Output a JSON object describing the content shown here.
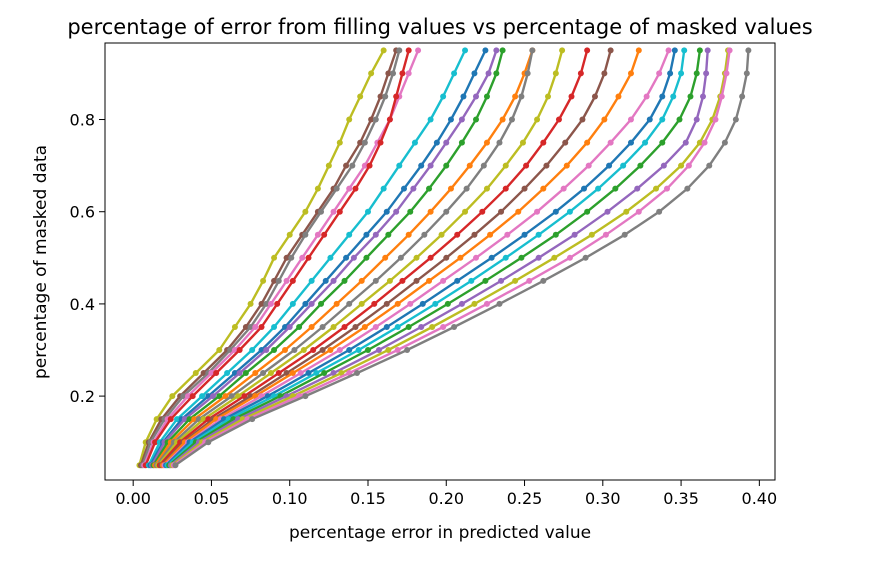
{
  "chart_data": {
    "type": "line",
    "title": "percentage of error from filling values vs percentage of masked values",
    "xlabel": "percentage error in predicted value",
    "ylabel": "percentage of masked data",
    "xlim": [
      -0.018,
      0.41
    ],
    "ylim": [
      0.018,
      0.966
    ],
    "xticks": [
      "0.00",
      "0.05",
      "0.10",
      "0.15",
      "0.20",
      "0.25",
      "0.30",
      "0.35",
      "0.40"
    ],
    "yticks": [
      "0.2",
      "0.4",
      "0.6",
      "0.8"
    ],
    "grid": false,
    "legend": "none",
    "y": [
      0.05,
      0.1,
      0.15,
      0.2,
      0.25,
      0.3,
      0.35,
      0.4,
      0.45,
      0.5,
      0.55,
      0.6,
      0.65,
      0.7,
      0.75,
      0.8,
      0.85,
      0.9,
      0.95
    ],
    "series": [
      {
        "color": "#bcbd22",
        "x": [
          0.004,
          0.008,
          0.015,
          0.025,
          0.04,
          0.055,
          0.065,
          0.075,
          0.083,
          0.09,
          0.1,
          0.11,
          0.118,
          0.125,
          0.132,
          0.138,
          0.145,
          0.152,
          0.16
        ]
      },
      {
        "color": "#8c564b",
        "x": [
          0.005,
          0.01,
          0.018,
          0.03,
          0.045,
          0.06,
          0.072,
          0.082,
          0.09,
          0.098,
          0.108,
          0.118,
          0.128,
          0.136,
          0.145,
          0.152,
          0.158,
          0.163,
          0.168
        ]
      },
      {
        "color": "#7f7f7f",
        "x": [
          0.006,
          0.011,
          0.02,
          0.032,
          0.048,
          0.062,
          0.075,
          0.085,
          0.093,
          0.101,
          0.11,
          0.12,
          0.13,
          0.14,
          0.148,
          0.155,
          0.161,
          0.166,
          0.17
        ]
      },
      {
        "color": "#e377c2",
        "x": [
          0.007,
          0.013,
          0.022,
          0.035,
          0.05,
          0.065,
          0.078,
          0.088,
          0.098,
          0.108,
          0.118,
          0.128,
          0.138,
          0.148,
          0.156,
          0.164,
          0.17,
          0.176,
          0.182
        ]
      },
      {
        "color": "#d62728",
        "x": [
          0.008,
          0.014,
          0.024,
          0.038,
          0.053,
          0.068,
          0.082,
          0.092,
          0.102,
          0.112,
          0.122,
          0.132,
          0.142,
          0.151,
          0.158,
          0.164,
          0.168,
          0.172,
          0.176
        ]
      },
      {
        "color": "#17becf",
        "x": [
          0.01,
          0.017,
          0.028,
          0.044,
          0.06,
          0.076,
          0.09,
          0.102,
          0.114,
          0.126,
          0.138,
          0.15,
          0.16,
          0.17,
          0.18,
          0.19,
          0.198,
          0.205,
          0.212
        ]
      },
      {
        "color": "#1f77b4",
        "x": [
          0.011,
          0.019,
          0.031,
          0.048,
          0.065,
          0.082,
          0.097,
          0.11,
          0.123,
          0.136,
          0.149,
          0.162,
          0.173,
          0.184,
          0.194,
          0.203,
          0.211,
          0.218,
          0.225
        ]
      },
      {
        "color": "#9467bd",
        "x": [
          0.012,
          0.02,
          0.033,
          0.051,
          0.068,
          0.085,
          0.1,
          0.114,
          0.128,
          0.141,
          0.155,
          0.168,
          0.179,
          0.19,
          0.2,
          0.21,
          0.219,
          0.227,
          0.232
        ]
      },
      {
        "color": "#2ca02c",
        "x": [
          0.013,
          0.022,
          0.036,
          0.055,
          0.072,
          0.09,
          0.106,
          0.12,
          0.135,
          0.149,
          0.163,
          0.177,
          0.189,
          0.2,
          0.21,
          0.219,
          0.226,
          0.232,
          0.236
        ]
      },
      {
        "color": "#ff7f0e",
        "x": [
          0.014,
          0.024,
          0.039,
          0.059,
          0.078,
          0.097,
          0.114,
          0.13,
          0.146,
          0.161,
          0.176,
          0.19,
          0.203,
          0.215,
          0.226,
          0.236,
          0.244,
          0.25,
          0.255
        ]
      },
      {
        "color": "#7f7f7f",
        "x": [
          0.015,
          0.026,
          0.042,
          0.063,
          0.083,
          0.103,
          0.121,
          0.138,
          0.155,
          0.171,
          0.186,
          0.2,
          0.213,
          0.224,
          0.234,
          0.242,
          0.248,
          0.252,
          0.255
        ]
      },
      {
        "color": "#bcbd22",
        "x": [
          0.016,
          0.028,
          0.045,
          0.067,
          0.088,
          0.109,
          0.128,
          0.146,
          0.164,
          0.181,
          0.197,
          0.212,
          0.226,
          0.238,
          0.249,
          0.258,
          0.265,
          0.27,
          0.274
        ]
      },
      {
        "color": "#d62728",
        "x": [
          0.017,
          0.03,
          0.048,
          0.071,
          0.093,
          0.115,
          0.135,
          0.154,
          0.172,
          0.19,
          0.207,
          0.223,
          0.238,
          0.251,
          0.262,
          0.272,
          0.28,
          0.286,
          0.29
        ]
      },
      {
        "color": "#8c564b",
        "x": [
          0.018,
          0.032,
          0.051,
          0.075,
          0.098,
          0.121,
          0.142,
          0.162,
          0.181,
          0.2,
          0.218,
          0.235,
          0.25,
          0.264,
          0.276,
          0.287,
          0.295,
          0.301,
          0.305
        ]
      },
      {
        "color": "#ff7f0e",
        "x": [
          0.019,
          0.033,
          0.053,
          0.078,
          0.102,
          0.126,
          0.148,
          0.169,
          0.189,
          0.209,
          0.228,
          0.246,
          0.262,
          0.277,
          0.29,
          0.301,
          0.31,
          0.318,
          0.323
        ]
      },
      {
        "color": "#e377c2",
        "x": [
          0.02,
          0.035,
          0.056,
          0.082,
          0.107,
          0.132,
          0.155,
          0.177,
          0.198,
          0.219,
          0.239,
          0.258,
          0.275,
          0.291,
          0.305,
          0.318,
          0.328,
          0.336,
          0.342
        ]
      },
      {
        "color": "#1f77b4",
        "x": [
          0.021,
          0.036,
          0.058,
          0.086,
          0.112,
          0.138,
          0.162,
          0.185,
          0.207,
          0.229,
          0.25,
          0.27,
          0.288,
          0.304,
          0.318,
          0.33,
          0.338,
          0.343,
          0.346
        ]
      },
      {
        "color": "#17becf",
        "x": [
          0.022,
          0.038,
          0.061,
          0.09,
          0.117,
          0.144,
          0.169,
          0.193,
          0.216,
          0.238,
          0.259,
          0.279,
          0.297,
          0.313,
          0.327,
          0.338,
          0.345,
          0.35,
          0.352
        ]
      },
      {
        "color": "#2ca02c",
        "x": [
          0.023,
          0.04,
          0.064,
          0.094,
          0.122,
          0.15,
          0.176,
          0.201,
          0.225,
          0.248,
          0.27,
          0.29,
          0.308,
          0.324,
          0.338,
          0.349,
          0.356,
          0.36,
          0.362
        ]
      },
      {
        "color": "#9467bd",
        "x": [
          0.024,
          0.042,
          0.067,
          0.098,
          0.128,
          0.157,
          0.184,
          0.21,
          0.235,
          0.259,
          0.282,
          0.303,
          0.322,
          0.339,
          0.353,
          0.36,
          0.364,
          0.366,
          0.367
        ]
      },
      {
        "color": "#bcbd22",
        "x": [
          0.025,
          0.044,
          0.07,
          0.102,
          0.133,
          0.163,
          0.191,
          0.218,
          0.244,
          0.269,
          0.293,
          0.315,
          0.334,
          0.35,
          0.362,
          0.37,
          0.375,
          0.378,
          0.38
        ]
      },
      {
        "color": "#e377c2",
        "x": [
          0.026,
          0.046,
          0.073,
          0.106,
          0.138,
          0.169,
          0.198,
          0.226,
          0.253,
          0.279,
          0.302,
          0.323,
          0.341,
          0.355,
          0.365,
          0.372,
          0.376,
          0.379,
          0.381
        ]
      },
      {
        "color": "#7f7f7f",
        "x": [
          0.027,
          0.048,
          0.076,
          0.11,
          0.143,
          0.175,
          0.205,
          0.234,
          0.262,
          0.289,
          0.314,
          0.336,
          0.354,
          0.368,
          0.378,
          0.385,
          0.389,
          0.392,
          0.393
        ]
      }
    ]
  }
}
